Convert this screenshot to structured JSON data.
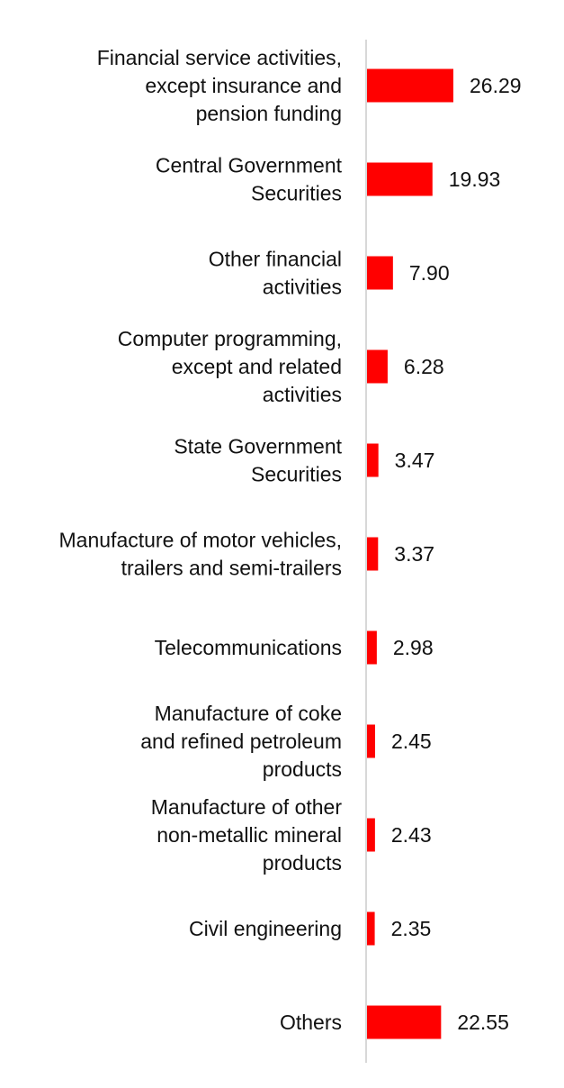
{
  "chart_data": {
    "type": "bar",
    "orientation": "horizontal",
    "categories": [
      [
        "Financial service activities,",
        "except insurance and",
        "pension funding"
      ],
      [
        "Central Government",
        "Securities"
      ],
      [
        "Other financial",
        "activities"
      ],
      [
        "Computer programming,",
        "except and related",
        "activities"
      ],
      [
        "State Government",
        "Securities"
      ],
      [
        "Manufacture of motor vehicles,",
        "trailers and semi-trailers"
      ],
      [
        "Telecommunications"
      ],
      [
        "Manufacture of coke",
        "and refined petroleum",
        "products"
      ],
      [
        "Manufacture of other",
        "non-metallic mineral",
        "products"
      ],
      [
        "Civil engineering"
      ],
      [
        "Others"
      ]
    ],
    "values": [
      26.29,
      19.93,
      7.9,
      6.28,
      3.47,
      3.37,
      2.98,
      2.45,
      2.43,
      2.35,
      22.55
    ],
    "value_labels": [
      "26.29",
      "19.93",
      "7.90",
      "6.28",
      "3.47",
      "3.37",
      "2.98",
      "2.45",
      "2.43",
      "2.35",
      "22.55"
    ],
    "xlim": [
      0,
      26.29
    ],
    "bar_color": "#ff0000",
    "axis_color": "#cccccc",
    "grid": false,
    "legend": "none"
  }
}
